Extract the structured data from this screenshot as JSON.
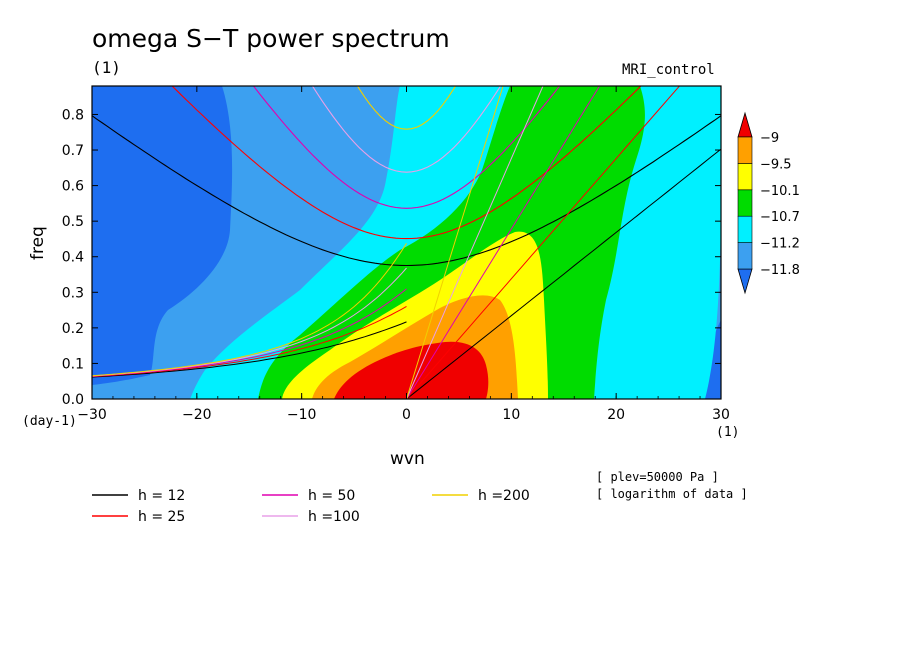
{
  "chart_data": {
    "type": "heatmap",
    "title": "omega S−T power spectrum",
    "subtitle_left": "(1)",
    "subtitle_right": "MRI_control",
    "xlabel": "wvn",
    "ylabel": "freq",
    "x_unit": "(1)",
    "y_unit": "(day-1)",
    "xlim": [
      -30,
      30
    ],
    "ylim": [
      0,
      0.88
    ],
    "x_ticks": [
      -30,
      -20,
      -10,
      0,
      10,
      20,
      30
    ],
    "x_tick_labels": [
      "−30",
      "−20",
      "−10",
      "0",
      "10",
      "20",
      "30"
    ],
    "y_ticks": [
      0,
      0.1,
      0.2,
      0.3,
      0.4,
      0.5,
      0.6,
      0.7,
      0.8
    ],
    "y_tick_labels": [
      "0.0",
      "0.1",
      "0.2",
      "0.3",
      "0.4",
      "0.5",
      "0.6",
      "0.7",
      "0.8"
    ],
    "colorbar": {
      "levels": [
        -11.8,
        -11.2,
        -10.7,
        -10.1,
        -9.5,
        -9
      ],
      "labels": [
        "−11.8",
        "−11.2",
        "−10.7",
        "−10.1",
        "−9.5",
        "−9"
      ],
      "colors": [
        "#1e6ef0",
        "#3ca0f0",
        "#00f0ff",
        "#00dc00",
        "#ffff00",
        "#ffa000",
        "#f00000"
      ]
    },
    "series": [
      {
        "name": "h = 12",
        "color": "#000000",
        "h": 12
      },
      {
        "name": "h = 25",
        "color": "#ff0000",
        "h": 25
      },
      {
        "name": "h = 50",
        "color": "#e000b0",
        "h": 50
      },
      {
        "name": "h =100",
        "color": "#e8a0e8",
        "h": 100
      },
      {
        "name": "h =200",
        "color": "#f0d000",
        "h": 200
      }
    ],
    "notes": [
      "[ plev=50000 Pa ]",
      "[ logarithm of data ]"
    ]
  }
}
